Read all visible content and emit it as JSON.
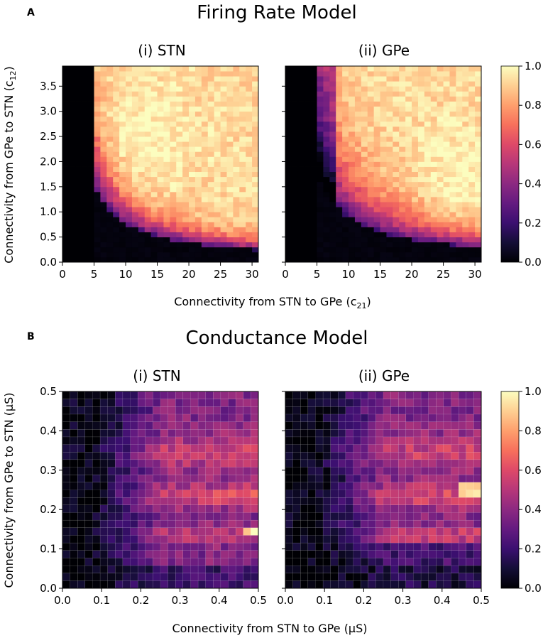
{
  "figure": {
    "panel_a_label": "A",
    "panel_b_label": "B"
  },
  "chart_data": [
    {
      "type": "heatmap",
      "panel": "A",
      "suptitle": "Firing Rate Model",
      "subtitles": [
        "(i) STN",
        "(ii) GPe"
      ],
      "xlabel": "Connectivity from STN to GPe (c",
      "xlabel_sub": "21",
      "xlabel_close": ")",
      "ylabel": "Connectivity from GPe to STN (c",
      "ylabel_sub": "12",
      "ylabel_close": ")",
      "x_range": [
        0,
        31
      ],
      "y_range": [
        0,
        3.9
      ],
      "x_ticks": [
        "0",
        "5",
        "10",
        "15",
        "20",
        "25",
        "30"
      ],
      "x_tick_values": [
        0,
        5,
        10,
        15,
        20,
        25,
        30
      ],
      "y_ticks": [
        "0.0",
        "0.5",
        "1.0",
        "1.5",
        "2.0",
        "2.5",
        "3.0",
        "3.5"
      ],
      "y_tick_values": [
        0,
        0.5,
        1.0,
        1.5,
        2.0,
        2.5,
        3.0,
        3.5
      ],
      "grid": {
        "nx": 31,
        "ny": 39
      },
      "colorbar": {
        "min": 0,
        "max": 1,
        "ticks": [
          "0.0",
          "0.2",
          "0.4",
          "0.6",
          "0.8",
          "1.0"
        ],
        "tick_values": [
          0,
          0.2,
          0.4,
          0.6,
          0.8,
          1.0
        ],
        "colormap": "magma"
      },
      "description": "Oscillation amplitude is ~0 below a hyperbolic boundary (x*y ≈ 8 for STN, ≈ 9 for GPe) and rises to 0.7–0.95 above it; no activity for x < 5.",
      "values_note": "Cell values follow: 0 if x<5.5 else boundary ramp from ~0.2 to ~0.9 as x*y grows past the threshold"
    },
    {
      "type": "heatmap",
      "panel": "B",
      "suptitle": "Conductance Model",
      "subtitles": [
        "(i) STN",
        "(ii) GPe"
      ],
      "xlabel": "Connectivity from STN to GPe (μS)",
      "ylabel": "Connectivity from GPe to STN (μS)",
      "x_range": [
        0,
        0.5
      ],
      "y_range": [
        0,
        0.5
      ],
      "x_ticks": [
        "0.0",
        "0.1",
        "0.2",
        "0.3",
        "0.4",
        "0.5"
      ],
      "x_tick_values": [
        0,
        0.1,
        0.2,
        0.3,
        0.4,
        0.5
      ],
      "y_ticks": [
        "0.0",
        "0.1",
        "0.2",
        "0.3",
        "0.4",
        "0.5"
      ],
      "y_tick_values": [
        0,
        0.1,
        0.2,
        0.3,
        0.4,
        0.5
      ],
      "grid": {
        "nx": 26,
        "ny": 26
      },
      "colorbar": {
        "min": 0,
        "max": 1,
        "ticks": [
          "0.0",
          "0.2",
          "0.4",
          "0.6",
          "0.8",
          "1.0"
        ],
        "tick_values": [
          0,
          0.2,
          0.4,
          0.6,
          0.8,
          1.0
        ],
        "colormap": "magma"
      },
      "description": "Values near 0 for x < 0.15, rising to 0.3–0.6 at higher x with horizontal bands of higher amplitude near y ≈ 0.13, 0.22–0.25, 0.32–0.37; peak ~0.95 near (0.48, 0.14) for STN and near (0.47, 0.24) for GPe.",
      "values_note": "Mostly 0.05–0.55 with banded structure; low (<0.15) for y < 0.05"
    }
  ]
}
